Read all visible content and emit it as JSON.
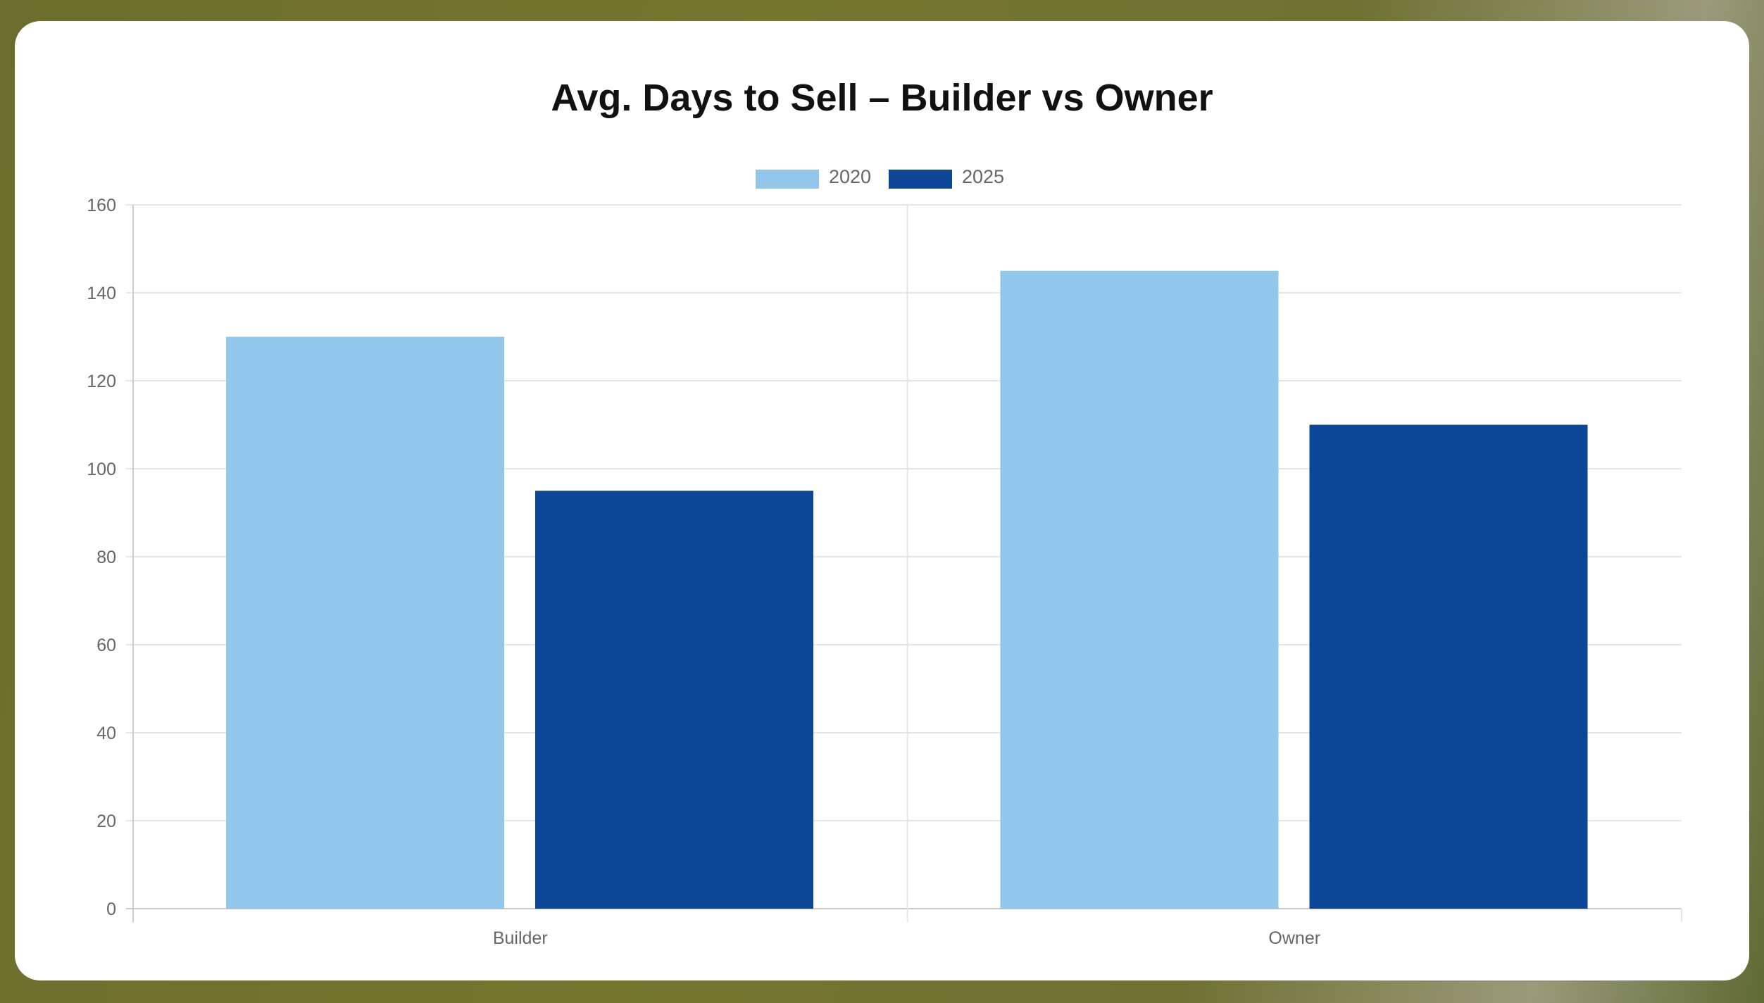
{
  "chart_data": {
    "type": "bar",
    "title": "Avg. Days to Sell – Builder vs Owner",
    "categories": [
      "Builder",
      "Owner"
    ],
    "series": [
      {
        "name": "2020",
        "values": [
          130,
          145
        ],
        "color": "#93c6eb"
      },
      {
        "name": "2025",
        "values": [
          95,
          110
        ],
        "color": "#0d4696"
      }
    ],
    "xlabel": "",
    "ylabel": "",
    "ylim": [
      0,
      160
    ],
    "yticks": [
      0,
      20,
      40,
      60,
      80,
      100,
      120,
      140,
      160
    ],
    "grid": true,
    "legend_position": "top"
  }
}
